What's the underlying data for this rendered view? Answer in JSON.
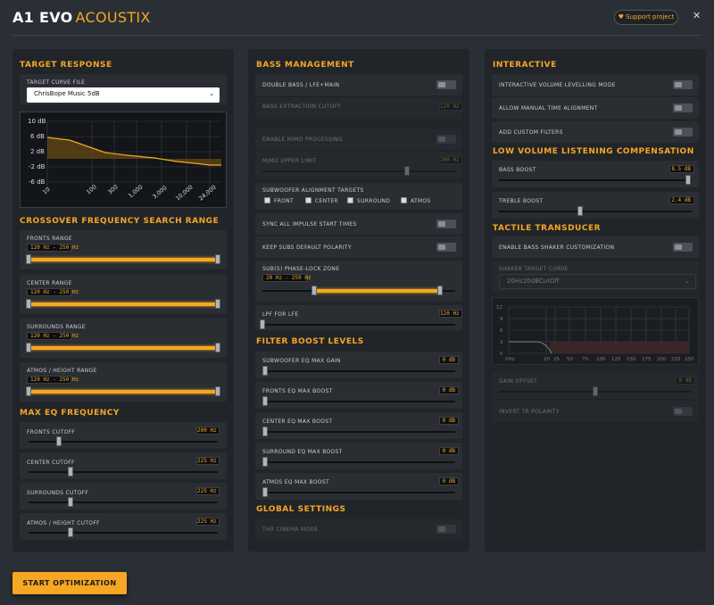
{
  "header": {
    "title_main": "A1 EVO",
    "title_accent": "ACOUSTIX",
    "support_label": "♥ Support project",
    "close_label": "✕"
  },
  "colors": {
    "accent": "#f5a623",
    "panel": "#21252a",
    "background": "#2a2f35",
    "row": "#2a2e33"
  },
  "target": {
    "heading": "TARGET RESPONSE",
    "curve_label": "TARGET CURVE FILE",
    "curve_value": "ChrisBope Music 5dB",
    "y_ticks": [
      "10 dB",
      "6 dB",
      "2 dB",
      "-2 dB",
      "-6 dB"
    ],
    "x_ticks": [
      "10",
      "100",
      "300",
      "1,000",
      "3,000",
      "10,000",
      "24,000"
    ]
  },
  "crossover": {
    "heading": "CROSSOVER FREQUENCY SEARCH RANGE",
    "items": [
      {
        "label": "FRONTS RANGE",
        "value": "120 Hz - 250 Hz",
        "low": 0,
        "high": 1
      },
      {
        "label": "CENTER RANGE",
        "value": "120 Hz - 250 Hz",
        "low": 0,
        "high": 1
      },
      {
        "label": "SURROUNDS RANGE",
        "value": "120 Hz - 250 Hz",
        "low": 0,
        "high": 1
      },
      {
        "label": "ATMOS / HEIGHT RANGE",
        "value": "120 Hz - 250 Hz",
        "low": 0,
        "high": 1
      }
    ]
  },
  "maxeq": {
    "heading": "MAX EQ FREQUENCY",
    "items": [
      {
        "label": "FRONTS CUTOFF",
        "value": "200 Hz",
        "pos": 0.16
      },
      {
        "label": "CENTER CUTOFF",
        "value": "225 Hz",
        "pos": 0.22
      },
      {
        "label": "SURROUNDS CUTOFF",
        "value": "225 Hz",
        "pos": 0.22
      },
      {
        "label": "ATMOS / HEIGHT CUTOFF",
        "value": "225 Hz",
        "pos": 0.22
      }
    ]
  },
  "bass": {
    "heading": "BASS MANAGEMENT",
    "double_bass": "DOUBLE BASS / LFE+MAIN",
    "extraction_label": "BASS EXTRACTION CUTOFF",
    "extraction_value": "120 Hz",
    "mimo_enable": "ENABLE MIMO PROCESSING",
    "mimo_upper": "MIMO UPPER LIMIT",
    "mimo_upper_value": "200 Hz",
    "mimo_upper_pos": 0.75,
    "sub_targets_label": "SUBWOOFER ALIGNMENT TARGETS",
    "sub_targets": [
      "FRONT",
      "CENTER",
      "SURROUND",
      "ATMOS"
    ],
    "sync": "SYNC ALL IMPULSE START TIMES",
    "polarity": "KEEP SUBS DEFAULT POLARITY",
    "phase_label": "SUB(S) PHASE-LOCK ZONE",
    "phase_value": "20 Hz - 250 Hz",
    "phase_low": 0.27,
    "phase_high": 0.92,
    "lpf_label": "LPF FOR LFE",
    "lpf_value": "120 Hz",
    "lpf_pos": 0.0
  },
  "boost": {
    "heading": "FILTER BOOST LEVELS",
    "items": [
      {
        "label": "SUBWOOFER EQ MAX GAIN",
        "value": "0 dB"
      },
      {
        "label": "FRONTS EQ MAX BOOST",
        "value": "0 dB"
      },
      {
        "label": "CENTER EQ MAX BOOST",
        "value": "0 dB"
      },
      {
        "label": "SURROUND EQ MAX BOOST",
        "value": "0 dB"
      },
      {
        "label": "ATMOS EQ MAX BOOST",
        "value": "0 dB"
      }
    ]
  },
  "global": {
    "heading": "GLOBAL SETTINGS",
    "thx": "THX CINEMA MODE"
  },
  "interactive": {
    "heading": "INTERACTIVE",
    "levelling": "INTERACTIVE VOLUME LEVELLING MODE",
    "time_align": "ALLOW MANUAL TIME ALIGNMENT",
    "custom": "ADD CUSTOM FILTERS"
  },
  "lowvol": {
    "heading": "LOW VOLUME LISTENING COMPENSATION",
    "bass_label": "BASS BOOST",
    "bass_value": "8.5 dB",
    "bass_pos": 0.98,
    "treble_label": "TREBLE BOOST",
    "treble_value": "2.4 dB",
    "treble_pos": 0.42
  },
  "tactile": {
    "heading": "TACTILE TRANSDUCER",
    "enable": "ENABLE BASS SHAKER CUSTOMIZATION",
    "curve_label": "SHAKER TARGET CURVE",
    "curve_value": "20Hz20dBCutOff",
    "y_ticks": [
      "12",
      "9",
      "6",
      "3",
      "0"
    ],
    "x_ticks": [
      "0Hz",
      "20",
      "25",
      "50",
      "75",
      "100",
      "125",
      "150",
      "175",
      "200",
      "225",
      "250"
    ],
    "gain_label": "GAIN OFFSET",
    "gain_value": "0 dB",
    "gain_pos": 0.5,
    "invert": "INVERT TR POLARITY"
  },
  "footer": {
    "start_label": "START OPTIMIZATION"
  }
}
